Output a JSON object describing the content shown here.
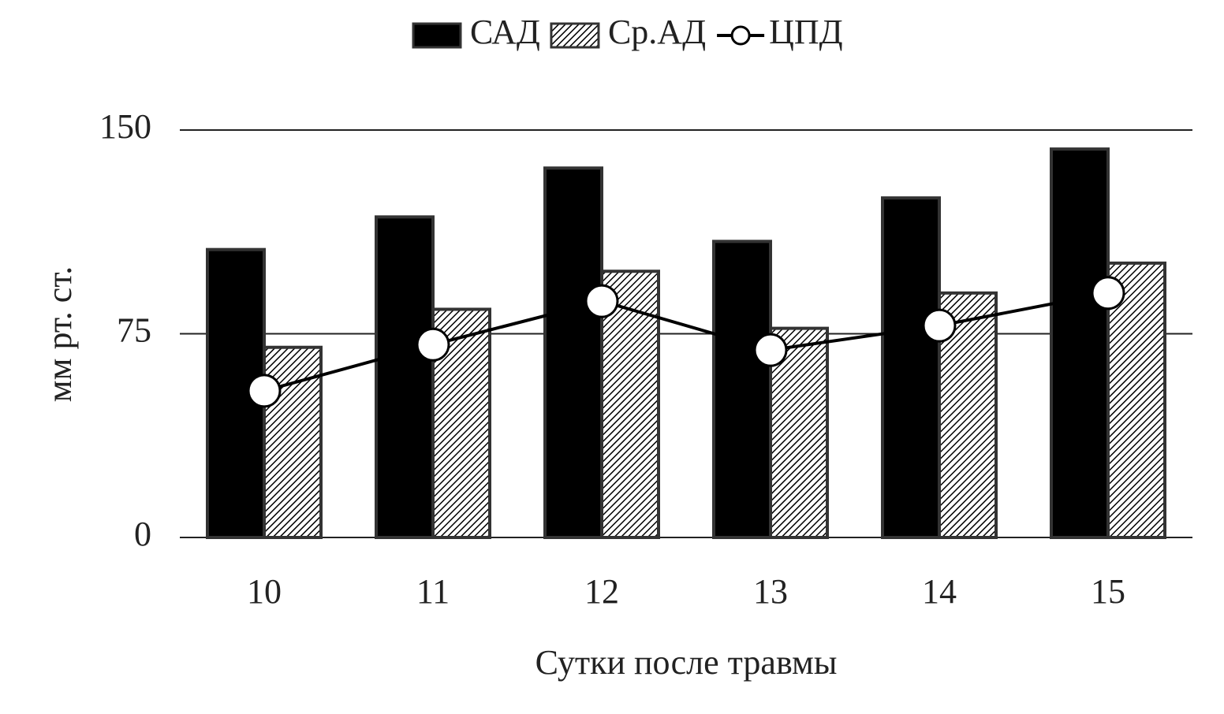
{
  "chart_data": {
    "type": "bar",
    "x_label": "Сутки после травмы",
    "y_label": "мм рт. ст.",
    "categories": [
      "10",
      "11",
      "12",
      "13",
      "14",
      "15"
    ],
    "series": [
      {
        "name": "САД",
        "type": "bar",
        "color": "#000000",
        "values": [
          106,
          118,
          136,
          109,
          125,
          143
        ]
      },
      {
        "name": "Ср.АД",
        "type": "bar",
        "pattern": "hatch",
        "color": "#000000",
        "values": [
          70,
          84,
          98,
          77,
          90,
          101
        ]
      },
      {
        "name": "ЦПД",
        "type": "line",
        "color": "#000000",
        "values": [
          54,
          71,
          87,
          69,
          78,
          90
        ]
      }
    ],
    "ylim": [
      0,
      150
    ],
    "yticks": [
      0,
      75,
      150
    ],
    "grid": true,
    "legend": "top"
  }
}
